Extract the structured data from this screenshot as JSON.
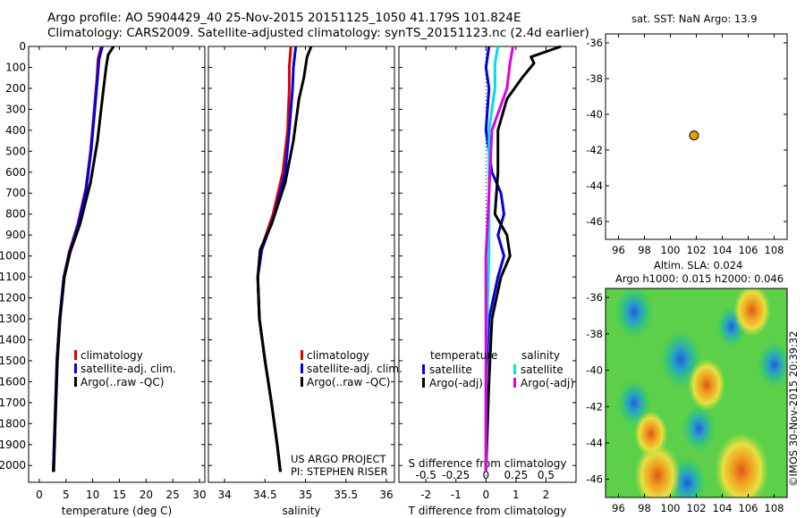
{
  "header": {
    "title_line1": "Argo profile: AO 5904429_40 25-Nov-2015 20151125_1050 41.179S 101.824E",
    "title_line2": "Climatology: CARS2009. Satellite-adjusted climatology: synTS_20151123.nc (2.4d earlier)"
  },
  "sst_text": "sat. SST: NaN Argo: 13.9",
  "slа_line1": "Altim. SLA: 0.024",
  "sla_line2": "Argo h1000: 0.015 h2000: 0.046",
  "credit": "US ARGO PROJECT",
  "pi": "PI: STEPHEN RISER",
  "stamp": "©IMOS 30-Nov-2015 20:39:32",
  "colors": {
    "climatology": "#e00000",
    "satellite": "#0000e0",
    "argo": "#000000",
    "sat_salinity": "#00e0e0",
    "argo_salinity": "#e000e0",
    "map_dot": "#e8a000"
  },
  "chart_data": [
    {
      "type": "line",
      "name": "temperature",
      "xlabel": "temperature (deg C)",
      "ylabel": "",
      "xlim": [
        -2,
        31
      ],
      "ylim": [
        2080,
        0
      ],
      "xticks": [
        0,
        5,
        10,
        15,
        20,
        25,
        30
      ],
      "yticks": [
        0,
        100,
        200,
        300,
        400,
        500,
        600,
        700,
        800,
        900,
        1000,
        1100,
        1200,
        1300,
        1400,
        1500,
        1600,
        1700,
        1800,
        1900,
        2000
      ],
      "legend": [
        "climatology",
        "satellite-adj. clim.",
        "Argo(..raw -QC)"
      ],
      "series": [
        {
          "name": "climatology",
          "color": "#e00000",
          "points": [
            [
              11.6,
              0
            ],
            [
              11.0,
              60
            ],
            [
              10.8,
              150
            ],
            [
              10.3,
              300
            ],
            [
              9.6,
              500
            ],
            [
              8.7,
              680
            ],
            [
              7.2,
              850
            ],
            [
              5.6,
              980
            ],
            [
              4.6,
              1100
            ],
            [
              3.8,
              1300
            ],
            [
              3.3,
              1500
            ],
            [
              2.9,
              1800
            ],
            [
              2.6,
              2030
            ]
          ]
        },
        {
          "name": "satellite-adj. clim.",
          "color": "#0000e0",
          "points": [
            [
              11.8,
              0
            ],
            [
              11.2,
              60
            ],
            [
              10.9,
              150
            ],
            [
              10.4,
              300
            ],
            [
              9.7,
              500
            ],
            [
              8.8,
              680
            ],
            [
              7.3,
              850
            ],
            [
              5.7,
              980
            ],
            [
              4.6,
              1100
            ],
            [
              3.8,
              1300
            ],
            [
              3.3,
              1500
            ],
            [
              2.9,
              1800
            ],
            [
              2.6,
              2030
            ]
          ]
        },
        {
          "name": "Argo(..raw -QC)",
          "color": "#000000",
          "points": [
            [
              13.9,
              0
            ],
            [
              12.9,
              40
            ],
            [
              12.5,
              100
            ],
            [
              11.8,
              250
            ],
            [
              10.9,
              450
            ],
            [
              9.6,
              650
            ],
            [
              7.6,
              850
            ],
            [
              5.8,
              980
            ],
            [
              4.7,
              1100
            ],
            [
              3.9,
              1300
            ],
            [
              3.4,
              1500
            ],
            [
              3.0,
              1800
            ],
            [
              2.7,
              2030
            ]
          ]
        }
      ]
    },
    {
      "type": "line",
      "name": "salinity",
      "xlabel": "salinity",
      "ylabel": "",
      "xlim": [
        33.8,
        36.1
      ],
      "ylim": [
        2080,
        0
      ],
      "xticks": [
        34,
        34.5,
        35,
        35.5,
        36
      ],
      "legend": [
        "climatology",
        "satellite-adj. clim.",
        "Argo(..raw -QC)"
      ],
      "series": [
        {
          "name": "climatology",
          "color": "#e00000",
          "points": [
            [
              34.82,
              0
            ],
            [
              34.8,
              100
            ],
            [
              34.8,
              200
            ],
            [
              34.78,
              400
            ],
            [
              34.72,
              600
            ],
            [
              34.6,
              800
            ],
            [
              34.45,
              970
            ],
            [
              34.41,
              1100
            ],
            [
              34.43,
              1300
            ],
            [
              34.5,
              1500
            ],
            [
              34.58,
              1700
            ],
            [
              34.65,
              1900
            ],
            [
              34.69,
              2030
            ]
          ]
        },
        {
          "name": "satellite-adj. clim.",
          "color": "#0000e0",
          "points": [
            [
              34.88,
              0
            ],
            [
              34.85,
              100
            ],
            [
              34.84,
              200
            ],
            [
              34.8,
              400
            ],
            [
              34.75,
              600
            ],
            [
              34.62,
              800
            ],
            [
              34.46,
              970
            ],
            [
              34.41,
              1100
            ],
            [
              34.43,
              1300
            ],
            [
              34.5,
              1500
            ],
            [
              34.58,
              1700
            ],
            [
              34.65,
              1900
            ],
            [
              34.69,
              2030
            ]
          ]
        },
        {
          "name": "Argo(..raw -QC)",
          "color": "#000000",
          "points": [
            [
              35.07,
              0
            ],
            [
              35.02,
              50
            ],
            [
              34.98,
              150
            ],
            [
              34.92,
              250
            ],
            [
              34.85,
              450
            ],
            [
              34.75,
              650
            ],
            [
              34.58,
              850
            ],
            [
              34.44,
              970
            ],
            [
              34.41,
              1100
            ],
            [
              34.43,
              1300
            ],
            [
              34.5,
              1500
            ],
            [
              34.58,
              1700
            ],
            [
              34.65,
              1900
            ],
            [
              34.69,
              2030
            ]
          ]
        }
      ]
    },
    {
      "type": "line",
      "name": "difference",
      "xlabel": "T difference from climatology",
      "xlabel2": "S difference from climatology",
      "xlim": [
        -2.9,
        3.0
      ],
      "ylim": [
        2080,
        0
      ],
      "xticks": [
        -2,
        -1,
        0,
        1,
        2
      ],
      "xticks_top": [
        -0.5,
        -0.25,
        0,
        0.25,
        0.5
      ],
      "legend_left_title": "temperature",
      "legend_right_title": "salinity",
      "legend_left": [
        "satellite",
        "Argo(-adj)"
      ],
      "legend_right": [
        "satellite",
        "Argo(-adj)"
      ],
      "series": [
        {
          "name": "T satellite",
          "color": "#0000e0",
          "points": [
            [
              0.1,
              0
            ],
            [
              0.0,
              100
            ],
            [
              0.1,
              200
            ],
            [
              0.0,
              400
            ],
            [
              0.2,
              600
            ],
            [
              0.5,
              700
            ],
            [
              0.6,
              800
            ],
            [
              0.4,
              900
            ],
            [
              0.6,
              1000
            ],
            [
              0.4,
              1100
            ],
            [
              0.1,
              1300
            ],
            [
              0.0,
              1600
            ],
            [
              0.0,
              2030
            ]
          ]
        },
        {
          "name": "T Argo(-adj)",
          "color": "#000000",
          "points": [
            [
              2.5,
              0
            ],
            [
              1.5,
              50
            ],
            [
              1.6,
              80
            ],
            [
              1.2,
              150
            ],
            [
              0.7,
              250
            ],
            [
              0.4,
              400
            ],
            [
              0.4,
              600
            ],
            [
              0.3,
              800
            ],
            [
              0.7,
              900
            ],
            [
              0.8,
              1000
            ],
            [
              0.5,
              1100
            ],
            [
              0.2,
              1300
            ],
            [
              0.1,
              1600
            ],
            [
              0.0,
              2030
            ]
          ]
        },
        {
          "name": "S satellite",
          "color": "#00e0e0",
          "points": [
            [
              0.4,
              0
            ],
            [
              0.3,
              80
            ],
            [
              0.3,
              200
            ],
            [
              0.1,
              400
            ],
            [
              0.1,
              700
            ],
            [
              0.1,
              1000
            ],
            [
              0.0,
              1500
            ],
            [
              0.0,
              2030
            ]
          ]
        },
        {
          "name": "S Argo(-adj)",
          "color": "#e000e0",
          "points": [
            [
              0.9,
              0
            ],
            [
              0.8,
              80
            ],
            [
              0.7,
              200
            ],
            [
              0.2,
              400
            ],
            [
              0.1,
              700
            ],
            [
              0.0,
              1000
            ],
            [
              0.0,
              1500
            ],
            [
              0.0,
              2030
            ]
          ]
        }
      ]
    },
    {
      "type": "scatter",
      "name": "position-map",
      "xlim": [
        95,
        109
      ],
      "ylim": [
        -47,
        -35.5
      ],
      "xticks": [
        96,
        98,
        100,
        102,
        104,
        106,
        108
      ],
      "yticks": [
        -36,
        -38,
        -40,
        -42,
        -44,
        -46
      ],
      "points": [
        [
          101.824,
          -41.179
        ]
      ]
    },
    {
      "type": "heatmap",
      "name": "sla-map",
      "xlim": [
        95,
        109
      ],
      "ylim": [
        -47,
        -35.5
      ],
      "xticks": [
        96,
        98,
        100,
        102,
        104,
        106,
        108
      ],
      "yticks": [
        -36,
        -38,
        -40,
        -42,
        -44,
        -46
      ],
      "features": [
        {
          "kind": "low",
          "lon": 97.2,
          "lat": -36.8,
          "r": 0.9
        },
        {
          "kind": "low",
          "lon": 100.8,
          "lat": -39.4,
          "r": 1.0
        },
        {
          "kind": "low",
          "lon": 104.7,
          "lat": -37.6,
          "r": 0.7
        },
        {
          "kind": "low",
          "lon": 108.0,
          "lat": -39.7,
          "r": 0.8
        },
        {
          "kind": "low",
          "lon": 97.2,
          "lat": -41.8,
          "r": 0.8
        },
        {
          "kind": "low",
          "lon": 102.2,
          "lat": -43.2,
          "r": 0.8
        },
        {
          "kind": "low",
          "lon": 101.3,
          "lat": -46.2,
          "r": 0.9
        },
        {
          "kind": "high",
          "lon": 106.3,
          "lat": -36.7,
          "r": 0.9
        },
        {
          "kind": "high",
          "lon": 99.0,
          "lat": -45.8,
          "r": 1.1
        },
        {
          "kind": "high",
          "lon": 105.5,
          "lat": -45.5,
          "r": 1.3
        },
        {
          "kind": "high",
          "lon": 102.8,
          "lat": -40.8,
          "r": 0.9
        },
        {
          "kind": "high",
          "lon": 98.5,
          "lat": -43.5,
          "r": 0.8
        }
      ]
    }
  ]
}
